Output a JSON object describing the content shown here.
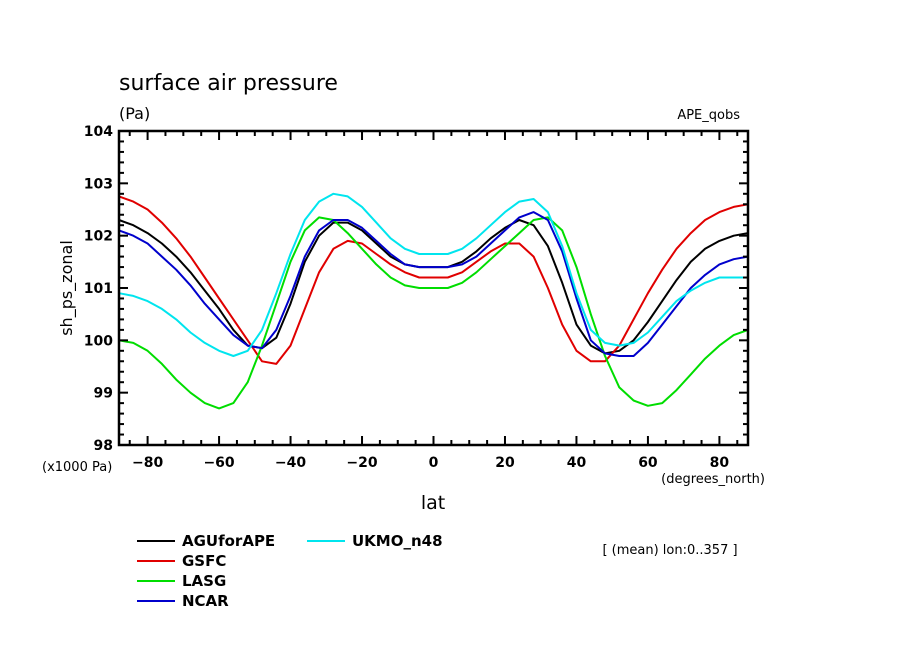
{
  "chart_data": {
    "type": "line",
    "title": "surface air pressure",
    "units_label": "(Pa)",
    "experiment_label": "APE_qobs",
    "ylabel": "sh_ps_zonal",
    "y_scale_label": "(x1000 Pa)",
    "xlabel": "lat",
    "x_units_label": "(degrees_north)",
    "annotation": "[ (mean) lon:0..357 ]",
    "xlim": [
      -88,
      88
    ],
    "ylim": [
      98,
      104
    ],
    "xticks": [
      -80,
      -60,
      -40,
      -20,
      0,
      20,
      40,
      60,
      80
    ],
    "yticks": [
      98,
      99,
      100,
      101,
      102,
      103,
      104
    ],
    "xtick_labels": [
      "-80",
      "-60",
      "-40",
      "-20",
      "0",
      "20",
      "40",
      "60",
      "80"
    ],
    "ytick_labels": [
      "98",
      "99",
      "100",
      "101",
      "102",
      "103",
      "104"
    ],
    "grid": false,
    "legend_position": "bottom-left",
    "x": [
      -88,
      -84,
      -80,
      -76,
      -72,
      -68,
      -64,
      -60,
      -56,
      -52,
      -48,
      -44,
      -40,
      -36,
      -32,
      -28,
      -24,
      -20,
      -16,
      -12,
      -8,
      -4,
      0,
      4,
      8,
      12,
      16,
      20,
      24,
      28,
      32,
      36,
      40,
      44,
      48,
      52,
      56,
      60,
      64,
      68,
      72,
      76,
      80,
      84,
      88
    ],
    "series": [
      {
        "name": "AGUforAPE",
        "color": "#000000",
        "values": [
          102.3,
          102.2,
          102.05,
          101.85,
          101.6,
          101.3,
          100.95,
          100.6,
          100.2,
          99.9,
          99.85,
          100.05,
          100.7,
          101.5,
          102.0,
          102.25,
          102.25,
          102.1,
          101.85,
          101.6,
          101.45,
          101.4,
          101.4,
          101.4,
          101.5,
          101.7,
          101.95,
          102.15,
          102.3,
          102.2,
          101.8,
          101.1,
          100.3,
          99.9,
          99.75,
          99.8,
          100.0,
          100.35,
          100.75,
          101.15,
          101.5,
          101.75,
          101.9,
          102.0,
          102.05
        ]
      },
      {
        "name": "GSFC",
        "color": "#e00000",
        "values": [
          102.75,
          102.65,
          102.5,
          102.25,
          101.95,
          101.6,
          101.2,
          100.8,
          100.4,
          100.0,
          99.6,
          99.55,
          99.9,
          100.6,
          101.3,
          101.75,
          101.9,
          101.85,
          101.65,
          101.45,
          101.3,
          101.2,
          101.2,
          101.2,
          101.3,
          101.5,
          101.7,
          101.85,
          101.85,
          101.6,
          101.0,
          100.3,
          99.8,
          99.6,
          99.6,
          99.9,
          100.4,
          100.9,
          101.35,
          101.75,
          102.05,
          102.3,
          102.45,
          102.55,
          102.6
        ]
      },
      {
        "name": "LASG",
        "color": "#00dd00",
        "values": [
          100.0,
          99.95,
          99.8,
          99.55,
          99.25,
          99.0,
          98.8,
          98.7,
          98.8,
          99.2,
          99.9,
          100.7,
          101.5,
          102.1,
          102.35,
          102.3,
          102.05,
          101.75,
          101.45,
          101.2,
          101.05,
          101.0,
          101.0,
          101.0,
          101.1,
          101.3,
          101.55,
          101.8,
          102.05,
          102.3,
          102.35,
          102.1,
          101.4,
          100.5,
          99.7,
          99.1,
          98.85,
          98.75,
          98.8,
          99.05,
          99.35,
          99.65,
          99.9,
          100.1,
          100.2
        ]
      },
      {
        "name": "NCAR",
        "color": "#0000cc",
        "values": [
          102.1,
          102.0,
          101.85,
          101.6,
          101.35,
          101.05,
          100.7,
          100.4,
          100.1,
          99.9,
          99.85,
          100.2,
          100.85,
          101.6,
          102.1,
          102.3,
          102.3,
          102.15,
          101.9,
          101.65,
          101.45,
          101.4,
          101.4,
          101.4,
          101.45,
          101.6,
          101.85,
          102.1,
          102.35,
          102.45,
          102.3,
          101.7,
          100.8,
          100.0,
          99.75,
          99.7,
          99.7,
          99.95,
          100.3,
          100.65,
          101.0,
          101.25,
          101.45,
          101.55,
          101.6
        ]
      },
      {
        "name": "UKMO_n48",
        "color": "#00e5ee",
        "values": [
          100.9,
          100.85,
          100.75,
          100.6,
          100.4,
          100.15,
          99.95,
          99.8,
          99.7,
          99.8,
          100.2,
          100.9,
          101.65,
          102.3,
          102.65,
          102.8,
          102.75,
          102.55,
          102.25,
          101.95,
          101.75,
          101.65,
          101.65,
          101.65,
          101.75,
          101.95,
          102.2,
          102.45,
          102.65,
          102.7,
          102.45,
          101.8,
          100.9,
          100.2,
          99.95,
          99.9,
          99.95,
          100.15,
          100.45,
          100.75,
          100.95,
          101.1,
          101.2,
          101.2,
          101.2
        ]
      }
    ]
  }
}
